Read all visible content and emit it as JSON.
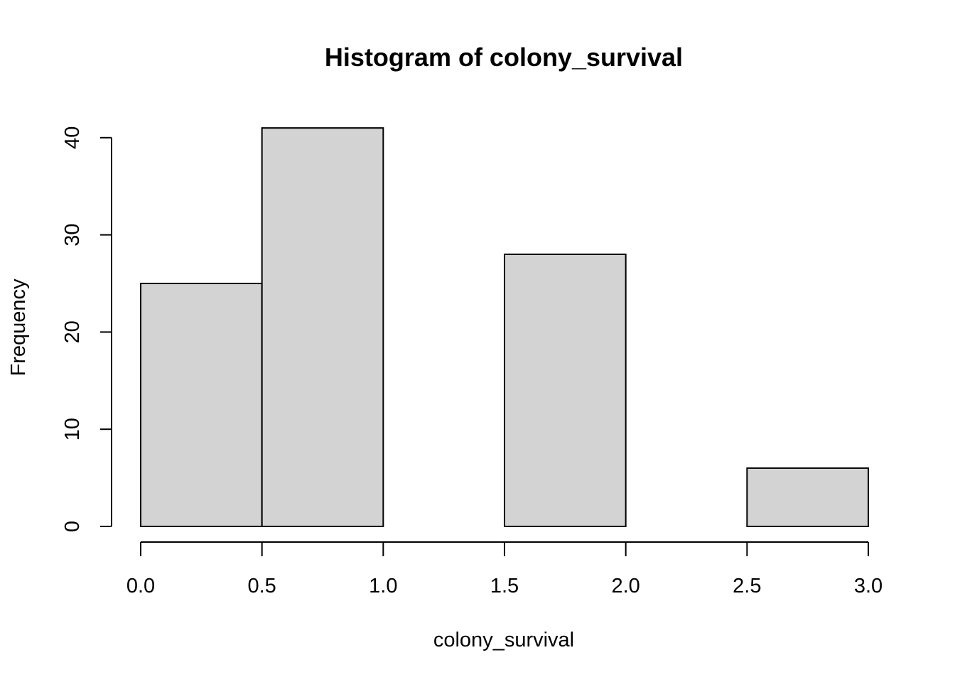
{
  "chart_data": {
    "type": "bar",
    "title": "Histogram of colony_survival",
    "xlabel": "colony_survival",
    "ylabel": "Frequency",
    "bin_edges": [
      0.0,
      0.5,
      1.0,
      1.5,
      2.0,
      2.5,
      3.0
    ],
    "counts": [
      25,
      41,
      0,
      28,
      0,
      6
    ],
    "xlim": [
      0.0,
      3.0
    ],
    "ylim": [
      0,
      41
    ],
    "x_ticks": [
      "0.0",
      "0.5",
      "1.0",
      "1.5",
      "2.0",
      "2.5",
      "3.0"
    ],
    "y_ticks": [
      "0",
      "10",
      "20",
      "30",
      "40"
    ],
    "bar_fill": "#d3d3d3",
    "bar_stroke": "#000000",
    "grid": false,
    "legend": "none"
  }
}
